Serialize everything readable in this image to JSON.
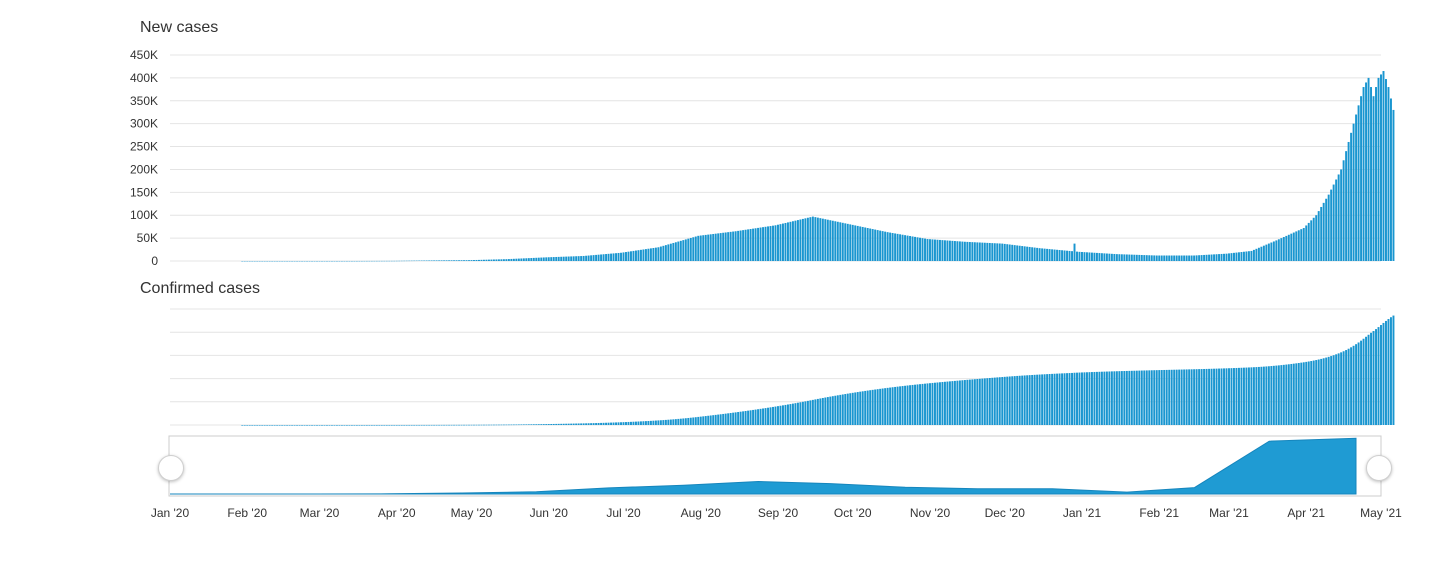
{
  "colors": {
    "bar": "#1a96d0",
    "navigator_fill": "#1f9bd3",
    "grid": "#e4e4e4",
    "text": "#333333"
  },
  "chart_data": [
    {
      "type": "bar",
      "title": "New cases",
      "ylim": [
        0,
        450000
      ],
      "y_ticks": [
        {
          "value": 0,
          "label": "0"
        },
        {
          "value": 50000,
          "label": "50K"
        },
        {
          "value": 100000,
          "label": "100K"
        },
        {
          "value": 150000,
          "label": "150K"
        },
        {
          "value": 200000,
          "label": "200K"
        },
        {
          "value": 250000,
          "label": "250K"
        },
        {
          "value": 300000,
          "label": "300K"
        },
        {
          "value": 350000,
          "label": "350K"
        },
        {
          "value": 400000,
          "label": "400K"
        },
        {
          "value": 450000,
          "label": "450K"
        }
      ],
      "grid": true,
      "x_range": [
        "2020-01-01",
        "2021-05-01"
      ],
      "bars_range": [
        "2020-01-30",
        "2021-04-26"
      ],
      "series": [
        {
          "anchors": [
            [
              "2020-01-30",
              0
            ],
            [
              "2020-02-29",
              0
            ],
            [
              "2020-03-15",
              30
            ],
            [
              "2020-03-31",
              300
            ],
            [
              "2020-04-15",
              1200
            ],
            [
              "2020-04-30",
              1800
            ],
            [
              "2020-05-15",
              4000
            ],
            [
              "2020-05-31",
              8000
            ],
            [
              "2020-06-15",
              11000
            ],
            [
              "2020-06-30",
              18000
            ],
            [
              "2020-07-15",
              30000
            ],
            [
              "2020-07-31",
              55000
            ],
            [
              "2020-08-15",
              65000
            ],
            [
              "2020-08-31",
              78000
            ],
            [
              "2020-09-15",
              97000
            ],
            [
              "2020-09-30",
              80000
            ],
            [
              "2020-10-15",
              63000
            ],
            [
              "2020-10-31",
              48000
            ],
            [
              "2020-11-15",
              42000
            ],
            [
              "2020-11-30",
              38000
            ],
            [
              "2020-12-15",
              28000
            ],
            [
              "2020-12-31",
              20000
            ],
            [
              "2021-01-15",
              15000
            ],
            [
              "2021-01-31",
              12000
            ],
            [
              "2021-02-15",
              12000
            ],
            [
              "2021-02-28",
              16000
            ],
            [
              "2021-03-10",
              22000
            ],
            [
              "2021-03-20",
              45000
            ],
            [
              "2021-03-31",
              72000
            ],
            [
              "2021-04-05",
              100000
            ],
            [
              "2021-04-10",
              145000
            ],
            [
              "2021-04-15",
              200000
            ],
            [
              "2021-04-18",
              260000
            ],
            [
              "2021-04-20",
              300000
            ],
            [
              "2021-04-22",
              340000
            ],
            [
              "2021-04-24",
              380000
            ],
            [
              "2021-04-26",
              400000
            ],
            [
              "2021-04-28",
              360000
            ],
            [
              "2021-04-30",
              400000
            ],
            [
              "2021-05-02",
              415000
            ],
            [
              "2021-05-04",
              380000
            ],
            [
              "2021-05-06",
              330000
            ]
          ],
          "spikes": [
            [
              "2020-12-29",
              38000
            ]
          ]
        }
      ]
    },
    {
      "type": "bar",
      "title": "Confirmed cases",
      "y_tick_labels_shown": false,
      "grid": true,
      "note": "cumulative of New cases series"
    },
    {
      "type": "area",
      "role": "navigator",
      "x_ticks": [
        "Jan '20",
        "Feb '20",
        "Mar '20",
        "Apr '20",
        "May '20",
        "Jun '20",
        "Jul '20",
        "Aug '20",
        "Sep '20",
        "Oct '20",
        "Nov '20",
        "Dec '20",
        "Jan '21",
        "Feb '21",
        "Mar '21",
        "Apr '21",
        "May '21"
      ],
      "points": [
        [
          "2020-01-01",
          0
        ],
        [
          "2020-02-01",
          0
        ],
        [
          "2020-03-01",
          100
        ],
        [
          "2020-04-01",
          1500
        ],
        [
          "2020-05-01",
          6000
        ],
        [
          "2020-06-01",
          14000
        ],
        [
          "2020-07-01",
          38000
        ],
        [
          "2020-08-01",
          55000
        ],
        [
          "2020-09-01",
          78000
        ],
        [
          "2020-10-01",
          65000
        ],
        [
          "2020-11-01",
          42000
        ],
        [
          "2020-12-01",
          33000
        ],
        [
          "2021-01-01",
          33000
        ],
        [
          "2021-02-01",
          12000
        ],
        [
          "2021-03-01",
          40000
        ],
        [
          "2021-04-01",
          330000
        ],
        [
          "2021-05-07",
          348000
        ]
      ]
    }
  ],
  "chart_titles": {
    "new_cases": "New cases",
    "confirmed_cases": "Confirmed cases"
  }
}
